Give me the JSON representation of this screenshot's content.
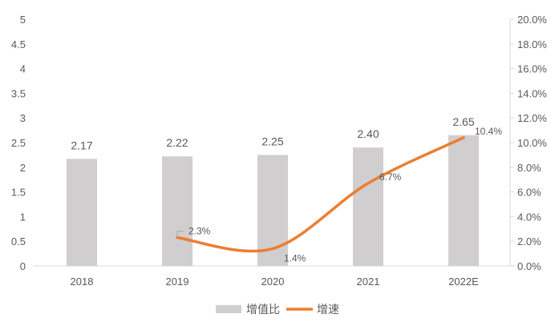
{
  "chart_data": {
    "type": "bar+line",
    "categories": [
      "2018",
      "2019",
      "2020",
      "2021",
      "2022E"
    ],
    "series": [
      {
        "name": "增值比",
        "type": "bar",
        "axis": "left",
        "values": [
          2.17,
          2.22,
          2.25,
          2.4,
          2.65
        ],
        "labels": [
          "2.17",
          "2.22",
          "2.25",
          "2.40",
          "2.65"
        ],
        "color": "#D0CECE"
      },
      {
        "name": "增速",
        "type": "line",
        "axis": "right",
        "values": [
          null,
          2.3,
          1.4,
          6.7,
          10.4
        ],
        "labels": [
          "",
          "2.3%",
          "1.4%",
          "6.7%",
          "10.4%"
        ],
        "color": "#ED7D31"
      }
    ],
    "left_axis": {
      "ylim": [
        0,
        5
      ],
      "ticks": [
        "0",
        "0.5",
        "1",
        "1.5",
        "2",
        "2.5",
        "3",
        "3.5",
        "4",
        "4.5",
        "5"
      ]
    },
    "right_axis": {
      "ylim": [
        0,
        20
      ],
      "ticks": [
        "0.0%",
        "2.0%",
        "4.0%",
        "6.0%",
        "8.0%",
        "10.0%",
        "12.0%",
        "14.0%",
        "16.0%",
        "18.0%",
        "20.0%"
      ]
    },
    "grid": false,
    "legend": "bottom"
  }
}
